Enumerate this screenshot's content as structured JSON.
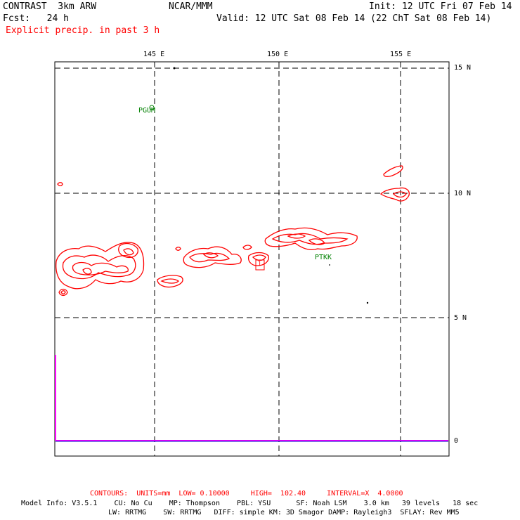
{
  "header": {
    "left_line1": "CONTRAST  3km ARW",
    "center_line1": "NCAR/MMM",
    "right_line1": "Init: 12 UTC Fri 07 Feb 14",
    "left_line2": "Fcst:   24 h",
    "right_line2": "Valid: 12 UTC Sat 08 Feb 14 (22 ChT Sat 08 Feb 14)",
    "field_title": "Explicit precip. in past 3 h"
  },
  "map": {
    "lon_labels": [
      "145 E",
      "150 E",
      "155 E"
    ],
    "lat_labels": [
      "15 N",
      "10 N",
      "5 N"
    ],
    "station_labels": [
      "PGUM",
      "PTKK"
    ],
    "max_marker_label": "1",
    "timeseries_axis_label": "0",
    "colors": {
      "precip_contour": "#ff0000",
      "station": "#008000",
      "timeseries": "#ff00ff",
      "grid": "#000000"
    }
  },
  "footer": {
    "contours": "CONTOURS:  UNITS=mm  LOW= 0.10000     HIGH=  102.40     INTERVAL=X  4.0000",
    "model_info_1": "Model Info: V3.5.1    CU: No Cu    MP: Thompson    PBL: YSU      SF: Noah LSM    3.0 km   39 levels   18 sec",
    "model_info_2": "LW: RRTMG    SW: RRTMG   DIFF: simple KM: 3D Smagor DAMP: Rayleigh3  SFLAY: Rev MM5"
  }
}
